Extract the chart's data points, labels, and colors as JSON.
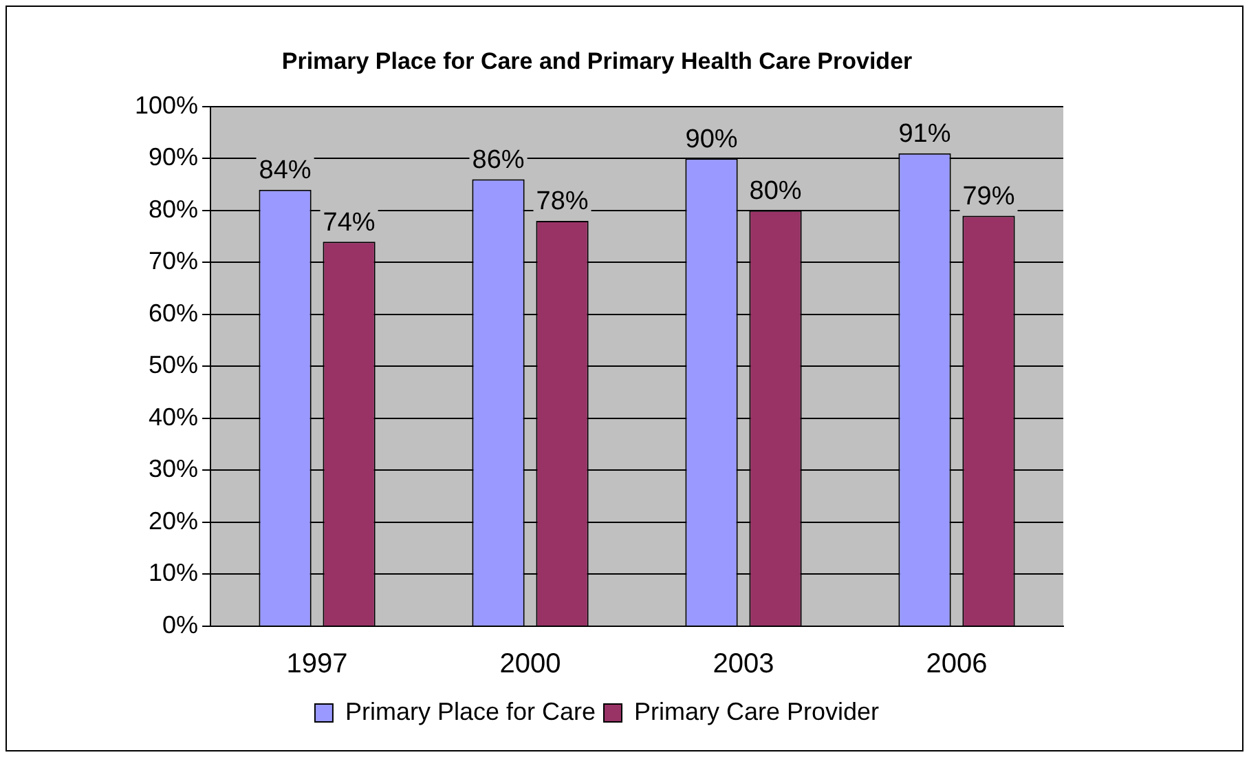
{
  "chart_data": {
    "type": "bar",
    "title": "Primary Place for Care and Primary Health Care Provider",
    "categories": [
      "1997",
      "2000",
      "2003",
      "2006"
    ],
    "series": [
      {
        "name": "Primary Place for Care",
        "color": "#9999ff",
        "values": [
          84,
          86,
          90,
          91
        ],
        "value_labels": [
          "84%",
          "86%",
          "90%",
          "91%"
        ]
      },
      {
        "name": "Primary Care Provider",
        "color": "#993366",
        "values": [
          74,
          78,
          80,
          79
        ],
        "value_labels": [
          "74%",
          "78%",
          "80%",
          "79%"
        ]
      }
    ],
    "ylim": [
      0,
      100
    ],
    "yticks": [
      {
        "value": 0,
        "label": "0%"
      },
      {
        "value": 10,
        "label": "10%"
      },
      {
        "value": 20,
        "label": "20%"
      },
      {
        "value": 30,
        "label": "30%"
      },
      {
        "value": 40,
        "label": "40%"
      },
      {
        "value": 50,
        "label": "50%"
      },
      {
        "value": 60,
        "label": "60%"
      },
      {
        "value": 70,
        "label": "70%"
      },
      {
        "value": 80,
        "label": "80%"
      },
      {
        "value": 90,
        "label": "90%"
      },
      {
        "value": 100,
        "label": "100%"
      }
    ],
    "grid": "y",
    "legend": "bottom"
  }
}
